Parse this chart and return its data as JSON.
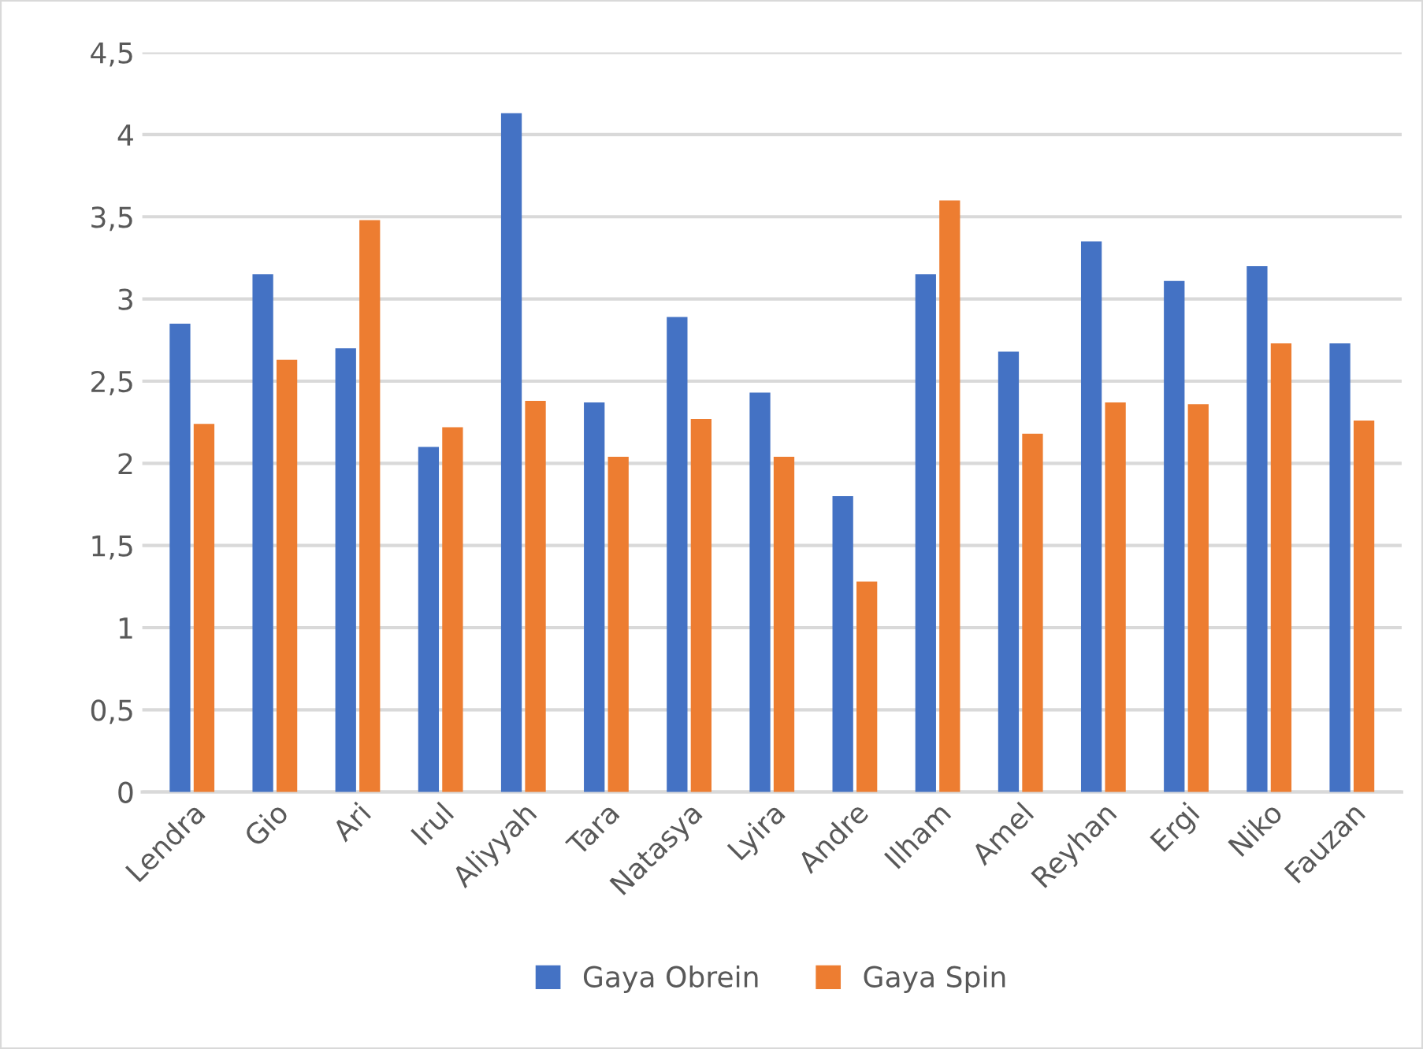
{
  "chart_data": {
    "type": "bar",
    "categories": [
      "Lendra",
      "Gio",
      "Ari",
      "Irul",
      "Aliyyah",
      "Tara",
      "Natasya",
      "Lyira",
      "Andre",
      "Ilham",
      "Amel",
      "Reyhan",
      "Ergi",
      "Niko",
      "Fauzan"
    ],
    "series": [
      {
        "name": "Gaya Obrein",
        "color": "#4472c4",
        "values": [
          2.85,
          3.15,
          2.7,
          2.1,
          4.13,
          2.37,
          2.89,
          2.43,
          1.8,
          3.15,
          2.68,
          3.35,
          3.11,
          3.2,
          2.73
        ]
      },
      {
        "name": "Gaya Spin",
        "color": "#ed7d31",
        "values": [
          2.24,
          2.63,
          3.48,
          2.22,
          2.38,
          2.04,
          2.27,
          2.04,
          1.28,
          3.6,
          2.18,
          2.37,
          2.36,
          2.73,
          2.26
        ]
      }
    ],
    "ylim": [
      0,
      4.5
    ],
    "yticks": [
      0,
      {
        "value": 0.5,
        "label": "0,5"
      },
      1,
      {
        "value": 1.5,
        "label": "1,5"
      },
      2,
      {
        "value": 2.5,
        "label": "2,5"
      },
      3,
      {
        "value": 3.5,
        "label": "3,5"
      },
      4,
      {
        "value": 4.5,
        "label": "4,5"
      }
    ],
    "grid": "y",
    "legend": "bottom"
  }
}
